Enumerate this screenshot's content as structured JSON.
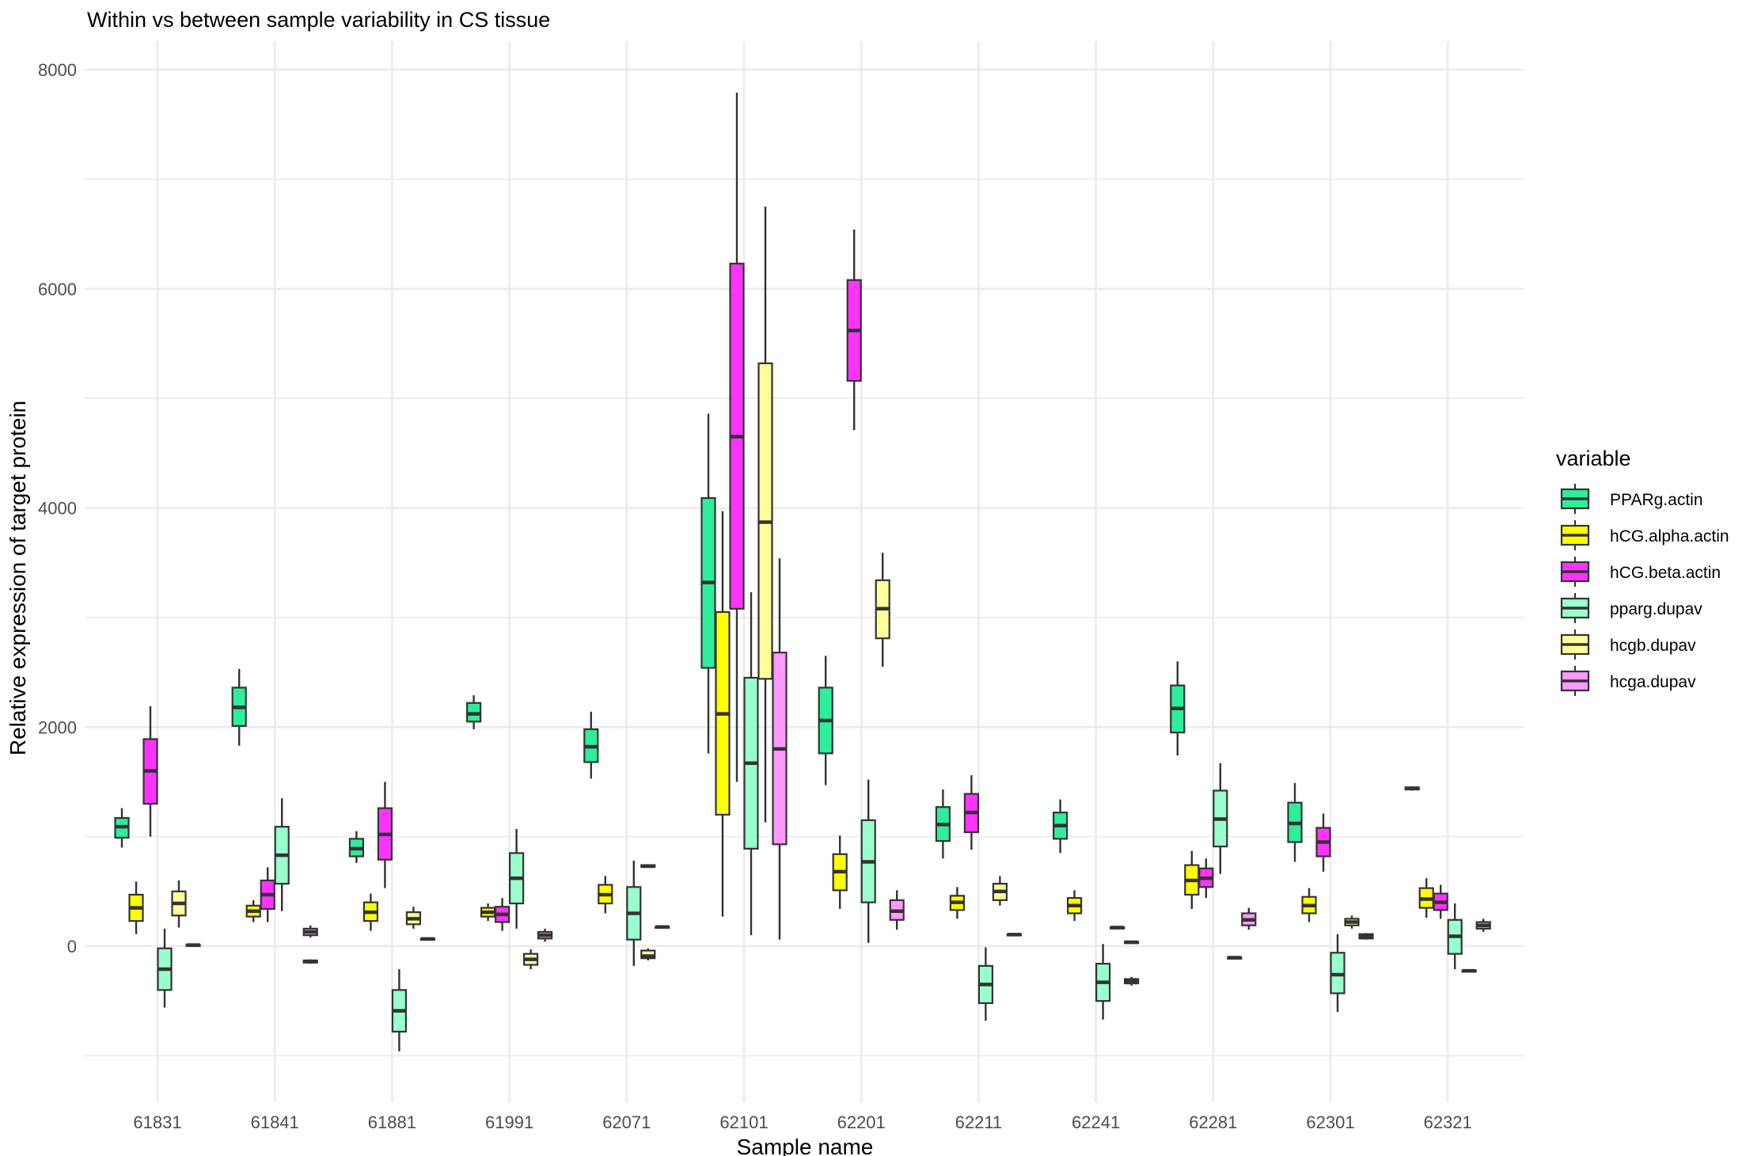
{
  "chart_data": {
    "type": "boxplot",
    "title": "Within vs between sample variability in CS tissue",
    "xlabel": "Sample name",
    "ylabel": "Relative expression of target protein",
    "ylim": [
      -1400,
      8250
    ],
    "yticks": [
      0,
      2000,
      4000,
      6000,
      8000
    ],
    "grid": true,
    "legend_title": "variable",
    "legend_position": "right",
    "categories": [
      "61831",
      "61841",
      "61881",
      "61991",
      "62071",
      "62101",
      "62201",
      "62211",
      "62241",
      "62281",
      "62301",
      "62321"
    ],
    "series": [
      {
        "name": "PPARg.actin",
        "color": "#2eee9a",
        "boxes": [
          {
            "min": 900,
            "q1": 990,
            "median": 1090,
            "q3": 1170,
            "max": 1260
          },
          {
            "min": 1830,
            "q1": 2010,
            "median": 2180,
            "q3": 2360,
            "max": 2530
          },
          {
            "min": 760,
            "q1": 820,
            "median": 890,
            "q3": 980,
            "max": 1050
          },
          {
            "min": 1980,
            "q1": 2050,
            "median": 2120,
            "q3": 2220,
            "max": 2290
          },
          {
            "min": 1530,
            "q1": 1680,
            "median": 1820,
            "q3": 1980,
            "max": 2140
          },
          {
            "min": 1760,
            "q1": 2540,
            "median": 3320,
            "q3": 4090,
            "max": 4860
          },
          {
            "min": 1470,
            "q1": 1760,
            "median": 2060,
            "q3": 2360,
            "max": 2650
          },
          {
            "min": 800,
            "q1": 960,
            "median": 1110,
            "q3": 1270,
            "max": 1430
          },
          {
            "min": 850,
            "q1": 980,
            "median": 1100,
            "q3": 1220,
            "max": 1340
          },
          {
            "min": 1740,
            "q1": 1950,
            "median": 2170,
            "q3": 2380,
            "max": 2600
          },
          {
            "min": 770,
            "q1": 950,
            "median": 1120,
            "q3": 1310,
            "max": 1490
          },
          {
            "min": 1420,
            "q1": 1430,
            "median": 1440,
            "q3": 1450,
            "max": 1460
          }
        ]
      },
      {
        "name": "hCG.alpha.actin",
        "color": "#ffff00",
        "boxes": [
          {
            "min": 110,
            "q1": 230,
            "median": 350,
            "q3": 470,
            "max": 590
          },
          {
            "min": 220,
            "q1": 270,
            "median": 320,
            "q3": 370,
            "max": 420
          },
          {
            "min": 140,
            "q1": 230,
            "median": 310,
            "q3": 400,
            "max": 480
          },
          {
            "min": 230,
            "q1": 270,
            "median": 310,
            "q3": 350,
            "max": 390
          },
          {
            "min": 300,
            "q1": 390,
            "median": 470,
            "q3": 560,
            "max": 640
          },
          {
            "min": 270,
            "q1": 1200,
            "median": 2120,
            "q3": 3050,
            "max": 3970
          },
          {
            "min": 340,
            "q1": 510,
            "median": 680,
            "q3": 840,
            "max": 1010
          },
          {
            "min": 250,
            "q1": 330,
            "median": 400,
            "q3": 460,
            "max": 540
          },
          {
            "min": 230,
            "q1": 300,
            "median": 370,
            "q3": 440,
            "max": 510
          },
          {
            "min": 340,
            "q1": 470,
            "median": 600,
            "q3": 740,
            "max": 870
          },
          {
            "min": 220,
            "q1": 300,
            "median": 370,
            "q3": 450,
            "max": 530
          },
          {
            "min": 260,
            "q1": 350,
            "median": 430,
            "q3": 530,
            "max": 620
          }
        ]
      },
      {
        "name": "hCG.beta.actin",
        "color": "#ff33ff",
        "boxes": [
          {
            "min": 1000,
            "q1": 1300,
            "median": 1600,
            "q3": 1890,
            "max": 2190
          },
          {
            "min": 220,
            "q1": 340,
            "median": 470,
            "q3": 600,
            "max": 720
          },
          {
            "min": 530,
            "q1": 790,
            "median": 1020,
            "q3": 1260,
            "max": 1500
          },
          {
            "min": 140,
            "q1": 220,
            "median": 290,
            "q3": 360,
            "max": 440
          },
          null,
          {
            "min": 1500,
            "q1": 3080,
            "median": 4650,
            "q3": 6230,
            "max": 7790
          },
          {
            "min": 4710,
            "q1": 5160,
            "median": 5620,
            "q3": 6080,
            "max": 6540
          },
          {
            "min": 880,
            "q1": 1040,
            "median": 1220,
            "q3": 1390,
            "max": 1560
          },
          null,
          {
            "min": 440,
            "q1": 540,
            "median": 620,
            "q3": 710,
            "max": 800
          },
          {
            "min": 680,
            "q1": 820,
            "median": 950,
            "q3": 1080,
            "max": 1210
          },
          {
            "min": 250,
            "q1": 330,
            "median": 400,
            "q3": 480,
            "max": 560
          }
        ]
      },
      {
        "name": "pparg.dupav",
        "color": "#99ffcc",
        "boxes": [
          {
            "min": -560,
            "q1": -400,
            "median": -210,
            "q3": -20,
            "max": 160
          },
          {
            "min": 320,
            "q1": 570,
            "median": 830,
            "q3": 1090,
            "max": 1350
          },
          {
            "min": -960,
            "q1": -780,
            "median": -590,
            "q3": -400,
            "max": -210
          },
          {
            "min": 160,
            "q1": 390,
            "median": 620,
            "q3": 850,
            "max": 1070
          },
          {
            "min": -180,
            "q1": 60,
            "median": 300,
            "q3": 540,
            "max": 780
          },
          {
            "min": 100,
            "q1": 890,
            "median": 1670,
            "q3": 2450,
            "max": 3230
          },
          {
            "min": 30,
            "q1": 400,
            "median": 770,
            "q3": 1150,
            "max": 1520
          },
          {
            "min": -680,
            "q1": -520,
            "median": -350,
            "q3": -180,
            "max": -10
          },
          {
            "min": -670,
            "q1": -500,
            "median": -330,
            "q3": -160,
            "max": 20
          },
          {
            "min": 660,
            "q1": 910,
            "median": 1160,
            "q3": 1420,
            "max": 1670
          },
          {
            "min": -600,
            "q1": -430,
            "median": -260,
            "q3": -60,
            "max": 110
          },
          {
            "min": -210,
            "q1": -70,
            "median": 90,
            "q3": 240,
            "max": 390
          }
        ]
      },
      {
        "name": "hcgb.dupav",
        "color": "#ffff99",
        "boxes": [
          {
            "min": 170,
            "q1": 280,
            "median": 390,
            "q3": 500,
            "max": 600
          },
          null,
          {
            "min": 160,
            "q1": 200,
            "median": 250,
            "q3": 310,
            "max": 360
          },
          {
            "min": -210,
            "q1": -170,
            "median": -120,
            "q3": -70,
            "max": -30
          },
          {
            "min": -130,
            "q1": -110,
            "median": -90,
            "q3": -40,
            "max": -20
          },
          {
            "min": 1130,
            "q1": 2440,
            "median": 3870,
            "q3": 5320,
            "max": 6750
          },
          {
            "min": 2550,
            "q1": 2810,
            "median": 3080,
            "q3": 3340,
            "max": 3590
          },
          {
            "min": 370,
            "q1": 420,
            "median": 500,
            "q3": 570,
            "max": 640
          },
          null,
          null,
          {
            "min": 160,
            "q1": 190,
            "median": 220,
            "q3": 250,
            "max": 280
          },
          null
        ]
      },
      {
        "name": "hcga.dupav",
        "color": "#ff99ff",
        "boxes": [
          {
            "min": 5,
            "q1": 8,
            "median": 10,
            "q3": 12,
            "max": 15
          },
          {
            "min": 80,
            "q1": 100,
            "median": 130,
            "q3": 160,
            "max": 190
          },
          {
            "min": 60,
            "q1": 63,
            "median": 66,
            "q3": 69,
            "max": 72
          },
          {
            "min": 40,
            "q1": 70,
            "median": 100,
            "q3": 130,
            "max": 160
          },
          {
            "min": 170,
            "q1": 172,
            "median": 175,
            "q3": 178,
            "max": 180
          },
          {
            "min": 60,
            "q1": 930,
            "median": 1800,
            "q3": 2680,
            "max": 3540
          },
          {
            "min": 150,
            "q1": 240,
            "median": 320,
            "q3": 420,
            "max": 510
          },
          {
            "min": 100,
            "q1": 103,
            "median": 106,
            "q3": 109,
            "max": 112
          },
          {
            "min": 30,
            "q1": 33,
            "median": 36,
            "q3": 39,
            "max": 42
          },
          {
            "min": 150,
            "q1": 190,
            "median": 240,
            "q3": 300,
            "max": 350
          },
          {
            "min": 60,
            "q1": 70,
            "median": 90,
            "q3": 110,
            "max": 120
          },
          {
            "min": 130,
            "q1": 160,
            "median": 190,
            "q3": 220,
            "max": 250
          }
        ]
      }
    ],
    "extras": [
      {
        "category": "61841",
        "color": "#ff99ff",
        "min": -160,
        "q1": -150,
        "median": -140,
        "q3": -130,
        "max": -120
      },
      {
        "category": "62071",
        "color": "#ffff99",
        "min": 720,
        "q1": 725,
        "median": 730,
        "q3": 740,
        "max": 745
      },
      {
        "category": "62241",
        "color": "#ffff99",
        "min": 165,
        "q1": 168,
        "median": 170,
        "q3": 172,
        "max": 175
      },
      {
        "category": "62241",
        "color": "#ff99ff",
        "min": -360,
        "q1": -340,
        "median": -320,
        "q3": -300,
        "max": -280
      },
      {
        "category": "62281",
        "color": "#ffff99",
        "min": -110,
        "q1": -107,
        "median": -105,
        "q3": -103,
        "max": -100
      },
      {
        "category": "62321",
        "color": "#ffff99",
        "min": -230,
        "q1": -228,
        "median": -225,
        "q3": -222,
        "max": -220
      }
    ]
  }
}
